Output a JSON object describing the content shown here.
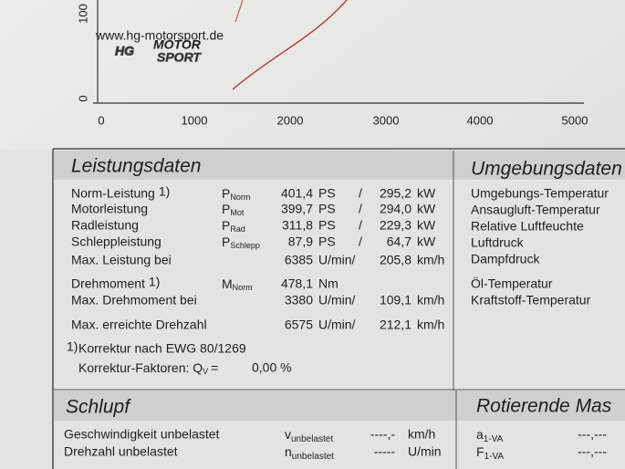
{
  "chart": {
    "y_axis_labels": [
      "100",
      "0"
    ],
    "x_axis_labels": [
      "0",
      "1000",
      "2000",
      "3000",
      "4000",
      "5000"
    ],
    "logo": {
      "url": "www.hg-motorsport.de",
      "brand": "HG",
      "line1": "MOTOR",
      "line2": "SPORT"
    }
  },
  "leistungsdaten": {
    "title": "Leistungsdaten",
    "rows": [
      {
        "label": "Norm-Leistung",
        "note": "1)",
        "symbol": "P",
        "sub": "Norm",
        "value1": "401,4",
        "unit1": "PS",
        "sep": "/",
        "value2": "295,2",
        "unit2": "kW"
      },
      {
        "label": "Motorleistung",
        "symbol": "P",
        "sub": "Mot",
        "value1": "399,7",
        "unit1": "PS",
        "sep": "/",
        "value2": "294,0",
        "unit2": "kW"
      },
      {
        "label": "Radleistung",
        "symbol": "P",
        "sub": "Rad",
        "value1": "311,8",
        "unit1": "PS",
        "sep": "/",
        "value2": "229,3",
        "unit2": "kW"
      },
      {
        "label": "Schleppleistung",
        "symbol": "P",
        "sub": "Schlepp",
        "value1": "87,9",
        "unit1": "PS",
        "sep": "/",
        "value2": "64,7",
        "unit2": "kW"
      },
      {
        "label": "Max. Leistung bei",
        "value1": "6385",
        "unit1": "U/min/",
        "value2": "205,8",
        "unit2": "km/h"
      },
      {
        "label": "Drehmoment",
        "note": "1)",
        "symbol": "M",
        "sub": "Norm",
        "value1": "478,1",
        "unit1": "Nm"
      },
      {
        "label": "Max. Drehmoment bei",
        "value1": "3380",
        "unit1": "U/min/",
        "value2": "109,1",
        "unit2": "km/h"
      },
      {
        "label": "Max. erreichte Drehzahl",
        "value1": "6575",
        "unit1": "U/min/",
        "value2": "212,1",
        "unit2": "km/h"
      }
    ],
    "footnote": {
      "marker": "1)",
      "text": "Korrektur nach EWG 80/1269",
      "factors_label": "Korrektur-Faktoren: Q",
      "factors_sub": "V",
      "factors_eq": "=",
      "factors_value": "0,00 %"
    }
  },
  "umgebungsdaten": {
    "title": "Umgebungsdaten",
    "items": [
      "Umgebungs-Temperatur",
      "Ansaugluft-Temperatur",
      "Relative Luftfeuchte",
      "Luftdruck",
      "Dampfdruck",
      "Öl-Temperatur",
      "Kraftstoff-Temperatur"
    ]
  },
  "schlupf": {
    "title": "Schlupf",
    "rows": [
      {
        "label": "Geschwindigkeit unbelastet",
        "symbol": "v",
        "sub": "unbelastet",
        "value": "----,-",
        "unit": "km/h"
      },
      {
        "label": "Drehzahl unbelastet",
        "symbol": "n",
        "sub": "unbelastet",
        "value": "-----",
        "unit": "U/min"
      }
    ]
  },
  "rotierende_massen": {
    "title": "Rotierende Mas",
    "rows": [
      {
        "symbol": "a",
        "sub": "1-VA",
        "value": "---,---"
      },
      {
        "symbol": "F",
        "sub": "1-VA",
        "value": "---,---"
      }
    ]
  }
}
